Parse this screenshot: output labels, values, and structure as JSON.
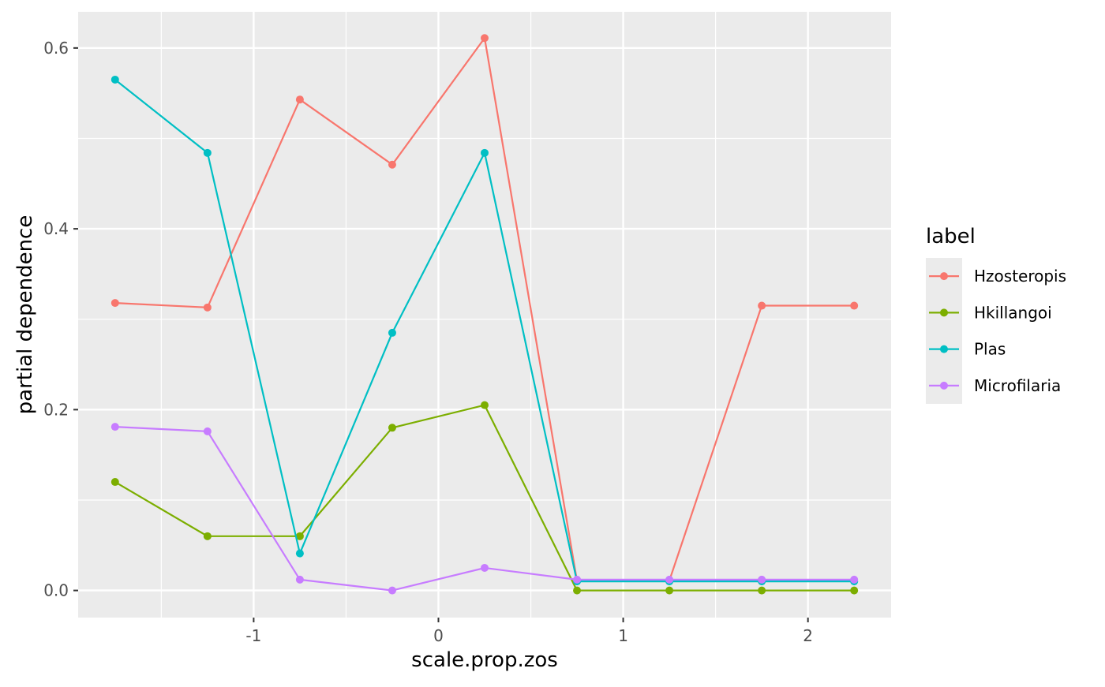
{
  "chart_data": {
    "type": "line",
    "title": "",
    "xlabel": "scale.prop.zos",
    "ylabel": "partial dependence",
    "x": [
      -1.75,
      -1.25,
      -0.75,
      -0.25,
      0.25,
      0.75,
      1.25,
      1.75,
      2.25
    ],
    "xlim": [
      -1.95,
      2.45
    ],
    "ylim": [
      -0.03,
      0.64
    ],
    "x_ticks": [
      -1,
      0,
      1,
      2
    ],
    "x_tick_labels": [
      "-1",
      "0",
      "1",
      "2"
    ],
    "y_ticks": [
      0.0,
      0.2,
      0.4,
      0.6
    ],
    "y_tick_labels": [
      "0.0",
      "0.2",
      "0.4",
      "0.6"
    ],
    "grid": true,
    "legend_title": "label",
    "legend_position": "right",
    "series": [
      {
        "name": "Hzosteropis",
        "color": "#F8766D",
        "values": [
          0.318,
          0.313,
          0.543,
          0.471,
          0.611,
          0.011,
          0.011,
          0.315,
          0.315
        ]
      },
      {
        "name": "Hkillangoi",
        "color": "#7CAE00",
        "values": [
          0.12,
          0.06,
          0.06,
          0.18,
          0.205,
          0.0,
          0.0,
          0.0,
          0.0
        ]
      },
      {
        "name": "Plas",
        "color": "#00BFC4",
        "values": [
          0.565,
          0.484,
          0.041,
          0.285,
          0.484,
          0.01,
          0.01,
          0.01,
          0.01
        ]
      },
      {
        "name": "Microfilaria",
        "color": "#C77CFF",
        "values": [
          0.181,
          0.176,
          0.012,
          0.0,
          0.025,
          0.012,
          0.012,
          0.012,
          0.012
        ]
      }
    ]
  }
}
